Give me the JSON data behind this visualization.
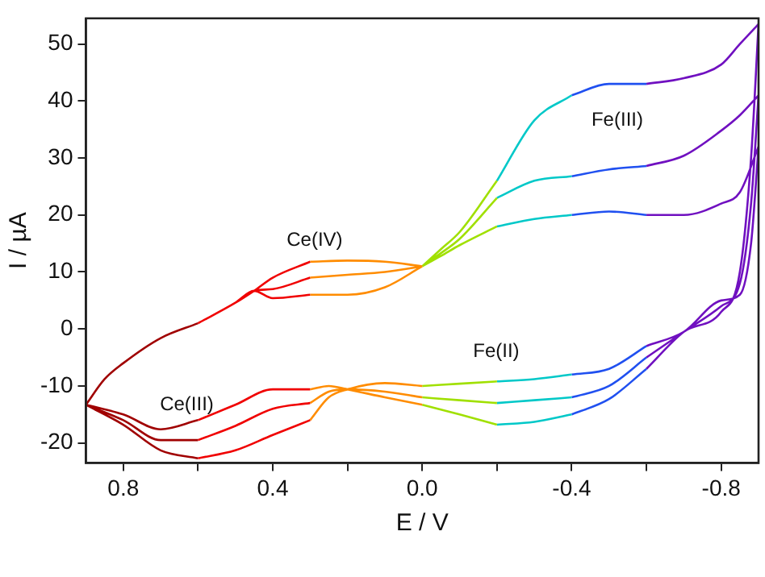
{
  "chart_data": {
    "type": "line",
    "xlabel": "E / V",
    "ylabel": "I / µA",
    "xlim": [
      0.9,
      -0.9
    ],
    "ylim": [
      -23.5,
      54.5
    ],
    "xticks": [
      0.8,
      {
        "value": 0.6,
        "label": null
      },
      0.4,
      {
        "value": 0.2,
        "label": null
      },
      {
        "value": 0,
        "label": "0.0"
      },
      {
        "value": -0.2,
        "label": null
      },
      -0.4,
      {
        "value": -0.6,
        "label": null
      },
      -0.8
    ],
    "yticks": [
      -20,
      -10,
      0,
      10,
      20,
      30,
      40,
      50
    ],
    "grid": false,
    "legend": false,
    "annotations": [
      "Ce(IV)",
      "Ce(III)",
      "Fe(III)",
      "Fe(II)"
    ],
    "series": [
      {
        "color": "#a00000",
        "x": [
          0.9,
          0.85,
          0.8,
          0.7,
          0.6,
          null,
          0.6,
          0.7,
          0.8,
          0.9,
          null,
          0.9,
          0.85,
          0.8,
          0.7,
          0.6,
          null,
          0.6,
          0.7,
          0.8,
          0.9,
          null,
          0.9,
          0.85,
          0.8,
          0.7,
          0.6,
          null,
          0.6,
          0.7,
          0.8,
          0.9
        ],
        "values": [
          -13.3,
          -8.8,
          -6,
          -1.6,
          1,
          null,
          -16,
          -17.6,
          -15,
          -13.3,
          null,
          -13.3,
          -8.8,
          -6,
          -1.6,
          1,
          null,
          -19.5,
          -19.5,
          -16,
          -13.3,
          null,
          -13.3,
          -8.8,
          -6,
          -1.6,
          1,
          null,
          -22.7,
          -21.3,
          -16.8,
          -13.3
        ]
      },
      {
        "color": "#f00000",
        "x": [
          0.6,
          0.5,
          0.45,
          0.4,
          0.3,
          null,
          0.3,
          0.4,
          0.5,
          0.6,
          null,
          0.6,
          0.5,
          0.45,
          0.4,
          0.3,
          null,
          0.3,
          0.4,
          0.5,
          0.6,
          null,
          0.6,
          0.5,
          0.45,
          0.4,
          0.3,
          null,
          0.3,
          0.4,
          0.5,
          0.6
        ],
        "values": [
          1,
          4.6,
          6.7,
          5.4,
          6,
          null,
          -10.6,
          -10.6,
          -13.3,
          -16,
          null,
          1,
          4.6,
          6.7,
          7,
          9,
          null,
          -13,
          -14,
          -17,
          -19.5,
          null,
          1,
          4.6,
          6.7,
          9,
          11.8,
          null,
          -16,
          -18.6,
          -21.3,
          -22.7
        ]
      },
      {
        "color": "#ff8c00",
        "x": [
          0.3,
          0.2,
          0.1,
          0.0,
          null,
          0.0,
          0.1,
          0.2,
          0.25,
          0.3,
          null,
          0.3,
          0.2,
          0.1,
          0.0,
          null,
          0.0,
          0.1,
          0.2,
          0.25,
          0.3,
          null,
          0.3,
          0.2,
          0.1,
          0.0,
          null,
          0.0,
          0.1,
          0.2,
          0.25,
          0.3
        ],
        "values": [
          6,
          6,
          7.3,
          11,
          null,
          -13.3,
          -12,
          -10.6,
          -10,
          -10.6,
          null,
          9,
          9.5,
          10,
          11,
          null,
          -12,
          -11,
          -10.6,
          -11,
          -13,
          null,
          11.8,
          12,
          11.8,
          11,
          null,
          -10,
          -9.5,
          -10.6,
          -12,
          -16
        ]
      },
      {
        "color": "#a0e000",
        "x": [
          0.0,
          -0.05,
          -0.1,
          -0.2,
          null,
          -0.2,
          -0.1,
          0.0,
          null,
          0.0,
          -0.05,
          -0.1,
          -0.2,
          null,
          -0.2,
          -0.1,
          0.0,
          null,
          0.0,
          -0.05,
          -0.1,
          -0.2,
          null,
          -0.2,
          -0.1,
          0.0
        ],
        "values": [
          11,
          14,
          17,
          26,
          null,
          -16.8,
          -15,
          -13.3,
          null,
          11,
          13.3,
          15.8,
          23,
          null,
          -13,
          -12.5,
          -12,
          null,
          11,
          12.8,
          14.7,
          18,
          null,
          -9.2,
          -9.6,
          -10
        ]
      },
      {
        "color": "#00c8c8",
        "x": [
          -0.2,
          -0.3,
          -0.4,
          null,
          -0.4,
          -0.3,
          -0.2,
          null,
          -0.2,
          -0.3,
          -0.4,
          null,
          -0.4,
          -0.3,
          -0.2,
          null,
          -0.2,
          -0.3,
          -0.4,
          null,
          -0.4,
          -0.3,
          -0.2
        ],
        "values": [
          26,
          36.6,
          41,
          null,
          -15,
          -16.3,
          -16.8,
          null,
          23,
          26,
          26.8,
          null,
          -12,
          -12.5,
          -13,
          null,
          18,
          19.3,
          20,
          null,
          -8,
          -8.8,
          -9.2
        ]
      },
      {
        "color": "#2050f0",
        "x": [
          -0.4,
          -0.5,
          -0.6,
          null,
          -0.6,
          -0.5,
          -0.4,
          null,
          -0.4,
          -0.5,
          -0.6,
          null,
          -0.6,
          -0.5,
          -0.4,
          null,
          -0.4,
          -0.5,
          -0.6,
          null,
          -0.6,
          -0.5,
          -0.4
        ],
        "values": [
          41,
          43,
          43,
          null,
          -7,
          -12.3,
          -15,
          null,
          26.8,
          28,
          28.6,
          null,
          -5,
          -10,
          -12,
          null,
          20,
          20.6,
          20,
          null,
          -3,
          -7,
          -8
        ]
      },
      {
        "color": "#7010c0",
        "x": [
          -0.6,
          -0.7,
          -0.8,
          -0.85,
          -0.9,
          null,
          -0.9,
          -0.88,
          -0.85,
          -0.8,
          -0.7,
          -0.6,
          null,
          -0.6,
          -0.7,
          -0.8,
          -0.85,
          -0.9,
          null,
          -0.9,
          -0.88,
          -0.85,
          -0.8,
          -0.7,
          -0.6,
          null,
          -0.6,
          -0.7,
          -0.8,
          -0.85,
          -0.9,
          null,
          -0.9,
          -0.88,
          -0.85,
          -0.8,
          -0.7,
          -0.6
        ],
        "values": [
          43,
          44,
          46.4,
          50,
          53.5,
          null,
          53.5,
          30,
          10,
          3,
          -0.5,
          -7,
          null,
          28.6,
          30.4,
          34.8,
          37.5,
          41,
          null,
          41,
          22,
          8,
          4,
          -0.5,
          -5,
          null,
          20,
          20,
          22,
          24,
          32,
          null,
          32,
          15,
          6,
          5,
          -0.5,
          -3
        ]
      }
    ]
  }
}
